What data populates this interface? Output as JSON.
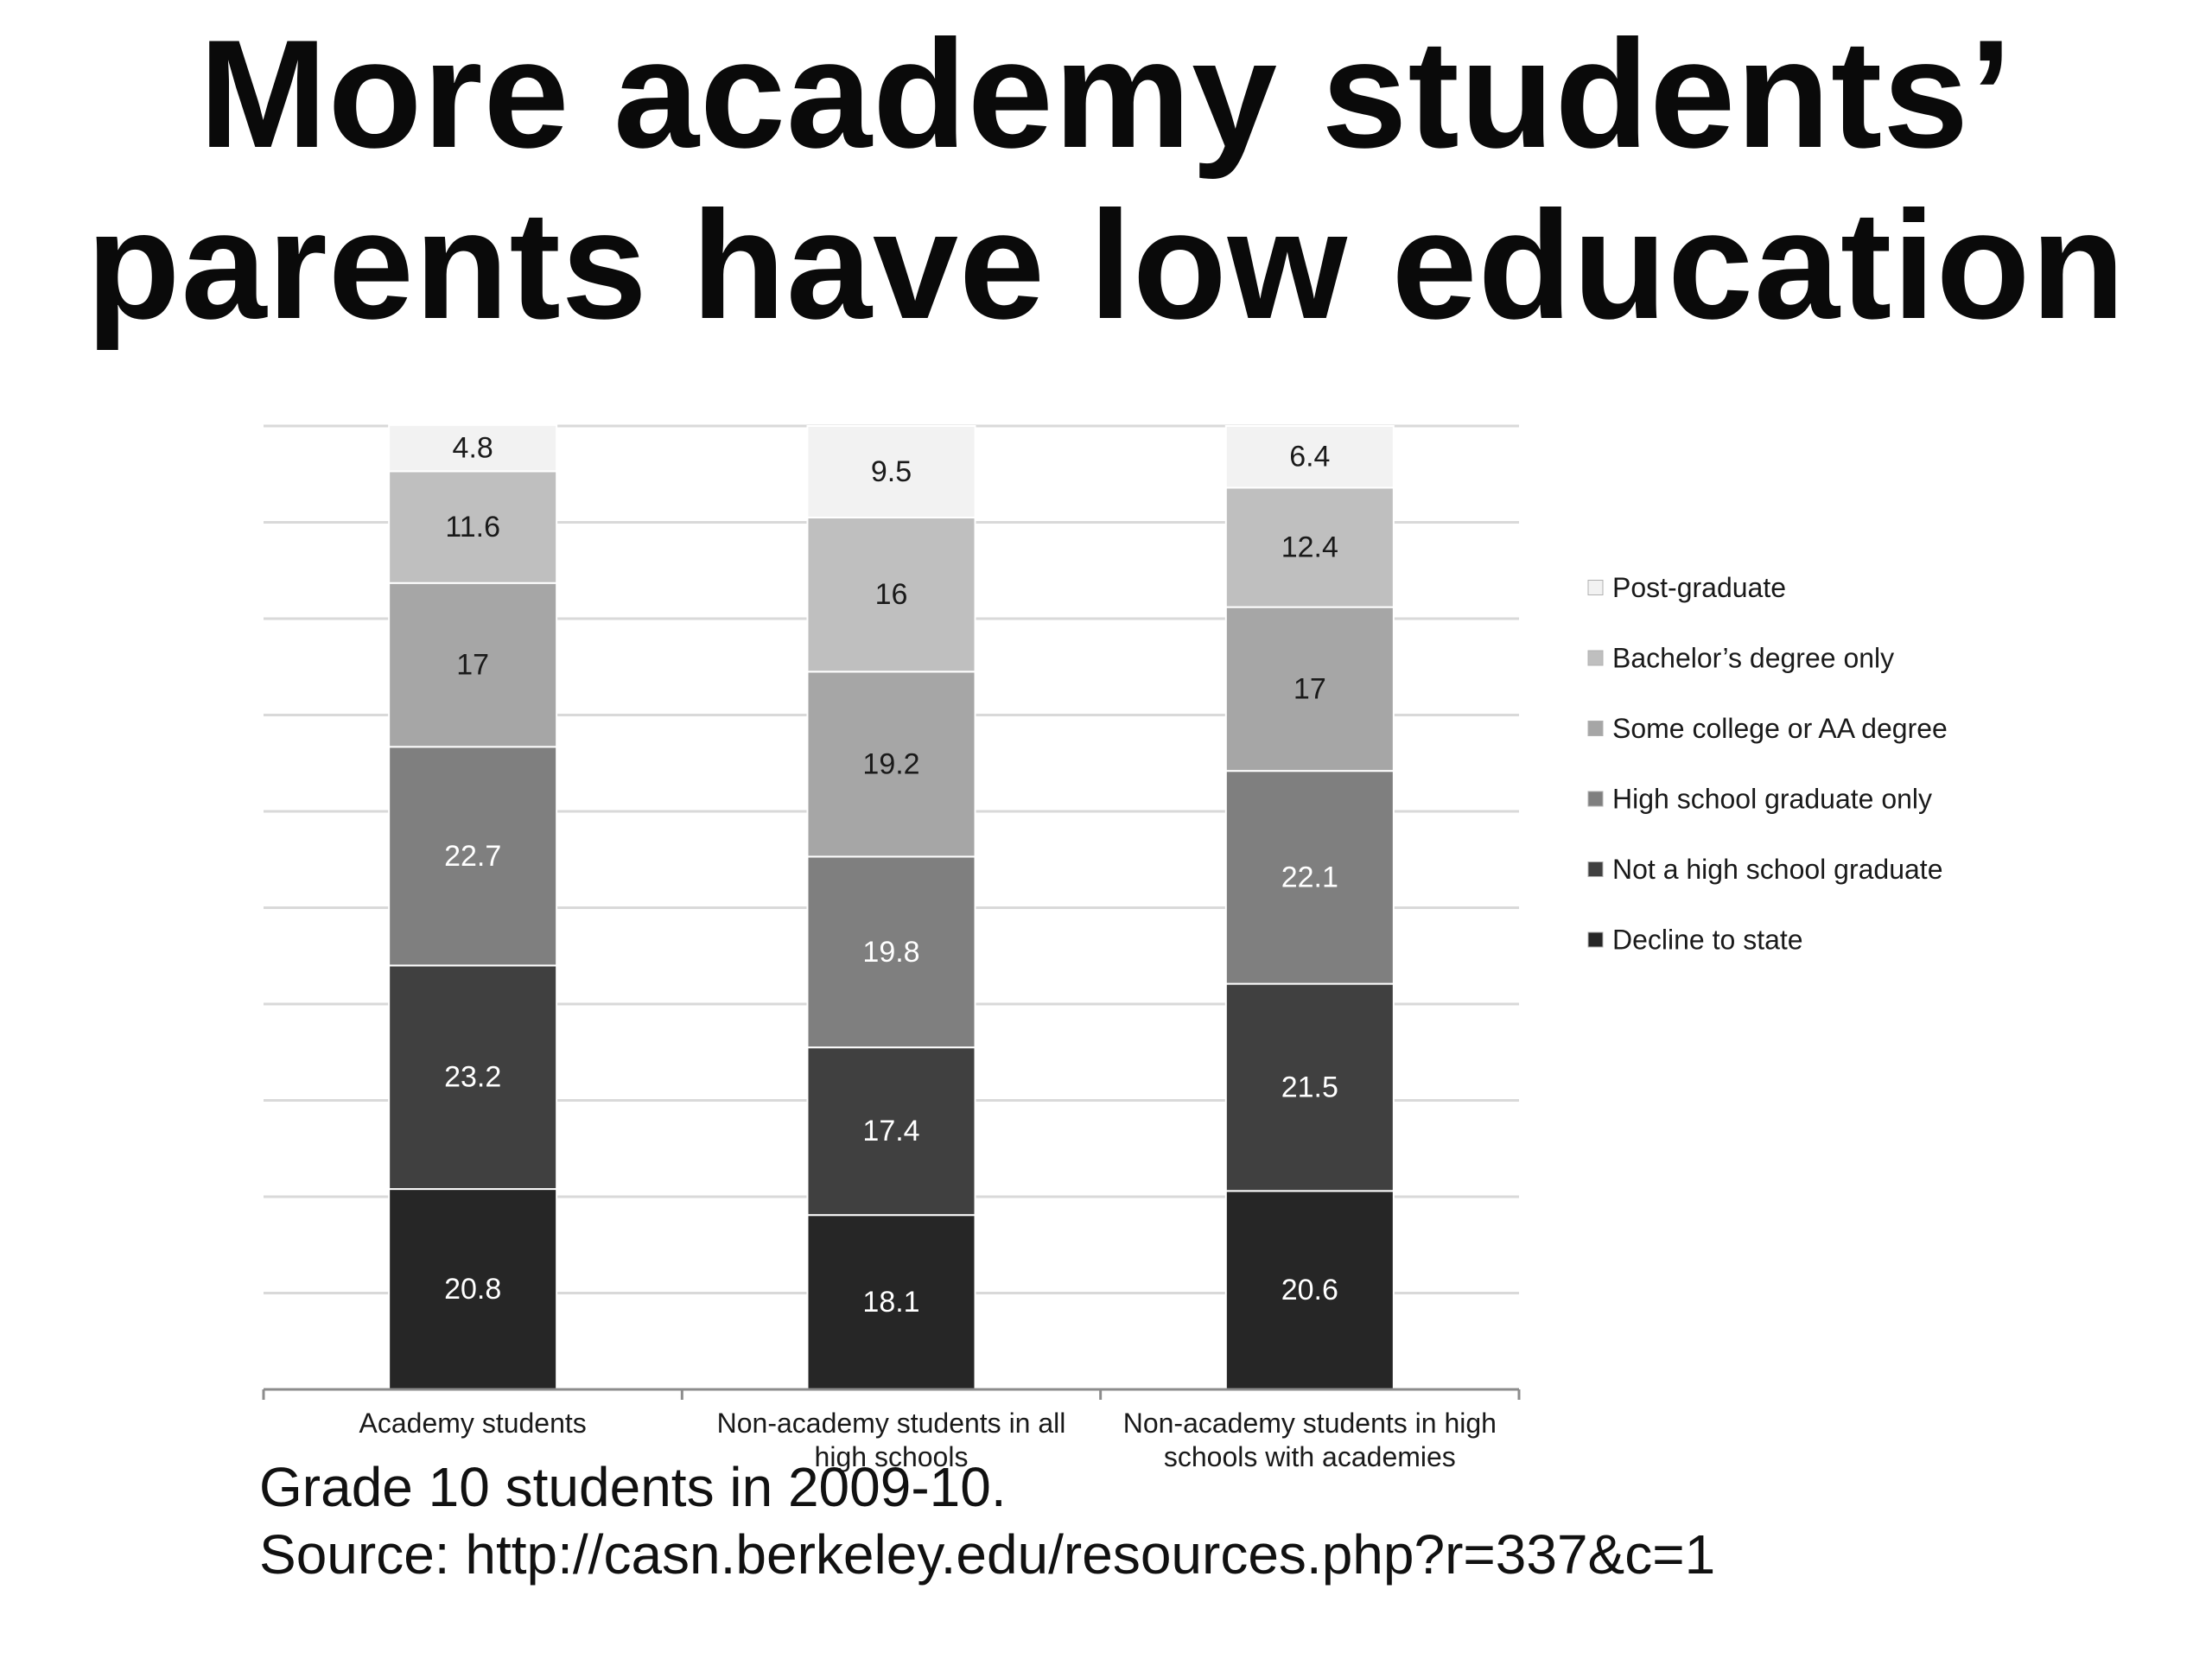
{
  "title_lines": [
    "More academy students’",
    "parents have low education"
  ],
  "caption": {
    "line1": "Grade 10 students in 2009-10.",
    "line2": "Source: http://casn.berkeley.edu/resources.php?r=337&c=1"
  },
  "chart_data": {
    "type": "bar",
    "stacked": true,
    "title": "More academy students’ parents have low education",
    "categories": [
      [
        "Academy students"
      ],
      [
        "Non-academy students in all",
        "high schools"
      ],
      [
        "Non-academy students in high",
        "schools with academies"
      ]
    ],
    "series": [
      {
        "name": "Decline to state",
        "color": "#262626",
        "label_color": "#ffffff",
        "values": [
          20.8,
          18.1,
          20.6
        ]
      },
      {
        "name": "Not a high school graduate",
        "color": "#404040",
        "label_color": "#ffffff",
        "values": [
          23.2,
          17.4,
          21.5
        ]
      },
      {
        "name": "High school graduate only",
        "color": "#7f7f7f",
        "label_color": "#ffffff",
        "values": [
          22.7,
          19.8,
          22.1
        ]
      },
      {
        "name": "Some college or AA degree",
        "color": "#a6a6a6",
        "label_color": "#1a1a1a",
        "values": [
          17,
          19.2,
          17
        ]
      },
      {
        "name": "Bachelor’s degree only",
        "color": "#bfbfbf",
        "label_color": "#1a1a1a",
        "values": [
          11.6,
          16,
          12.4
        ]
      },
      {
        "name": "Post-graduate",
        "color": "#f2f2f2",
        "label_color": "#1a1a1a",
        "values": [
          4.8,
          9.5,
          6.4
        ]
      }
    ],
    "ylim": [
      0,
      100
    ],
    "grid": true,
    "legend": "right",
    "xlabel": "",
    "ylabel": ""
  }
}
